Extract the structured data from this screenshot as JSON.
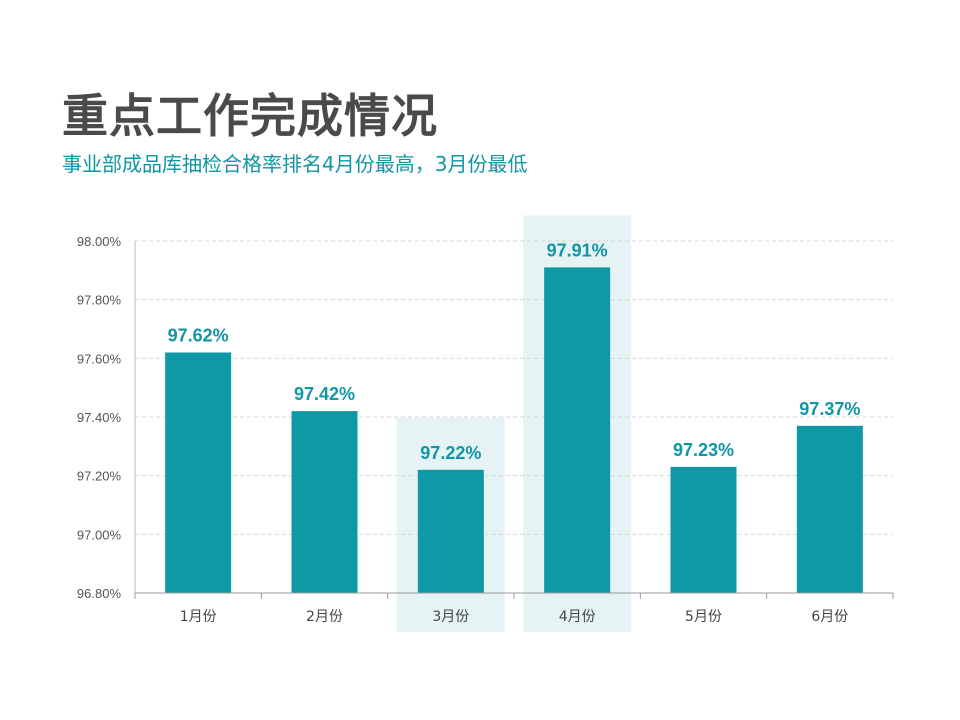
{
  "header": {
    "title": "重点工作完成情况",
    "subtitle": "事业部成品库抽检合格率排名4月份最高，3月份最低"
  },
  "colors": {
    "bar": "#0f99a6",
    "highlight": "#e6f3f4",
    "grid": "#d6d6d6",
    "label": "#1196a3"
  },
  "chart_data": {
    "type": "bar",
    "categories": [
      "1月份",
      "2月份",
      "3月份",
      "4月份",
      "5月份",
      "6月份"
    ],
    "values": [
      97.62,
      97.42,
      97.22,
      97.91,
      97.23,
      97.37
    ],
    "data_labels": [
      "97.62%",
      "97.42%",
      "97.22%",
      "97.91%",
      "97.23%",
      "97.37%"
    ],
    "ylim": [
      96.8,
      98.0
    ],
    "yticks": [
      "96.80%",
      "97.00%",
      "97.20%",
      "97.40%",
      "97.60%",
      "97.80%",
      "98.00%"
    ],
    "highlighted": [
      "3月份",
      "4月份"
    ],
    "grid": true
  }
}
